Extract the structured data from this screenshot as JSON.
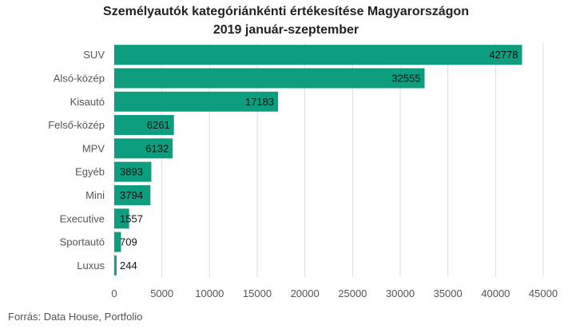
{
  "chart_data": {
    "type": "bar",
    "orientation": "horizontal",
    "title": "Személyautók kategóriánkénti értékesítése Magyarországon",
    "subtitle": "2019 január-szeptember",
    "categories": [
      "SUV",
      "Alsó-közép",
      "Kisautó",
      "Felső-közép",
      "MPV",
      "Egyéb",
      "Mini",
      "Executive",
      "Sportautó",
      "Luxus"
    ],
    "values": [
      42778,
      32555,
      17183,
      6261,
      6132,
      3893,
      3794,
      1557,
      709,
      244
    ],
    "xlim": [
      0,
      45000
    ],
    "xticks": [
      0,
      5000,
      10000,
      15000,
      20000,
      25000,
      30000,
      35000,
      40000,
      45000
    ],
    "grid": true,
    "bar_color": "#0c9e7f",
    "source": "Forrás:  Data House, Portfolio"
  }
}
